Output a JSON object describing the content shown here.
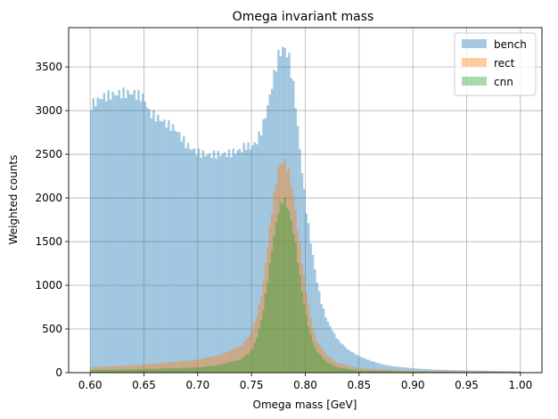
{
  "chart_data": {
    "type": "histogram",
    "title": "Omega invariant mass",
    "xlabel": "Omega mass [GeV]",
    "ylabel": "Weighted counts",
    "xlim": [
      0.58,
      1.02
    ],
    "ylim": [
      0,
      3950
    ],
    "xticks": [
      0.6,
      0.65,
      0.7,
      0.75,
      0.8,
      0.85,
      0.9,
      0.95,
      1.0
    ],
    "xtick_labels": [
      "0.60",
      "0.65",
      "0.70",
      "0.75",
      "0.80",
      "0.85",
      "0.90",
      "0.95",
      "1.00"
    ],
    "yticks": [
      0,
      500,
      1000,
      1500,
      2000,
      2500,
      3000,
      3500
    ],
    "ytick_labels": [
      "0",
      "500",
      "1000",
      "1500",
      "2000",
      "2500",
      "3000",
      "3500"
    ],
    "grid": true,
    "legend_position": "top-right",
    "bins": {
      "start": 0.6,
      "end": 1.0,
      "count": 200
    },
    "series": [
      {
        "name": "bench",
        "color": "#1f77b4",
        "alpha": 0.4,
        "points": [
          [
            0.6,
            3050
          ],
          [
            0.61,
            3150
          ],
          [
            0.62,
            3180
          ],
          [
            0.63,
            3200
          ],
          [
            0.64,
            3200
          ],
          [
            0.65,
            3150
          ],
          [
            0.655,
            2980
          ],
          [
            0.665,
            2900
          ],
          [
            0.68,
            2780
          ],
          [
            0.69,
            2600
          ],
          [
            0.7,
            2520
          ],
          [
            0.71,
            2490
          ],
          [
            0.72,
            2500
          ],
          [
            0.73,
            2510
          ],
          [
            0.74,
            2550
          ],
          [
            0.745,
            2600
          ],
          [
            0.75,
            2580
          ],
          [
            0.755,
            2650
          ],
          [
            0.76,
            2800
          ],
          [
            0.765,
            3050
          ],
          [
            0.77,
            3350
          ],
          [
            0.775,
            3630
          ],
          [
            0.78,
            3730
          ],
          [
            0.785,
            3600
          ],
          [
            0.79,
            3200
          ],
          [
            0.795,
            2550
          ],
          [
            0.8,
            1950
          ],
          [
            0.805,
            1500
          ],
          [
            0.81,
            1100
          ],
          [
            0.815,
            800
          ],
          [
            0.82,
            600
          ],
          [
            0.83,
            380
          ],
          [
            0.84,
            260
          ],
          [
            0.85,
            190
          ],
          [
            0.86,
            140
          ],
          [
            0.87,
            100
          ],
          [
            0.88,
            75
          ],
          [
            0.9,
            50
          ],
          [
            0.92,
            35
          ],
          [
            0.95,
            25
          ],
          [
            1.0,
            15
          ]
        ]
      },
      {
        "name": "rect",
        "color": "#ff7f0e",
        "alpha": 0.4,
        "points": [
          [
            0.6,
            60
          ],
          [
            0.65,
            90
          ],
          [
            0.7,
            150
          ],
          [
            0.72,
            200
          ],
          [
            0.74,
            300
          ],
          [
            0.75,
            450
          ],
          [
            0.755,
            650
          ],
          [
            0.76,
            950
          ],
          [
            0.765,
            1450
          ],
          [
            0.77,
            1950
          ],
          [
            0.775,
            2350
          ],
          [
            0.78,
            2430
          ],
          [
            0.785,
            2300
          ],
          [
            0.79,
            1950
          ],
          [
            0.795,
            1450
          ],
          [
            0.8,
            1000
          ],
          [
            0.805,
            620
          ],
          [
            0.81,
            380
          ],
          [
            0.82,
            200
          ],
          [
            0.83,
            110
          ],
          [
            0.85,
            50
          ],
          [
            0.9,
            20
          ],
          [
            1.0,
            10
          ]
        ]
      },
      {
        "name": "cnn",
        "color": "#2ca02c",
        "alpha": 0.4,
        "points": [
          [
            0.6,
            30
          ],
          [
            0.65,
            40
          ],
          [
            0.7,
            60
          ],
          [
            0.72,
            90
          ],
          [
            0.74,
            150
          ],
          [
            0.75,
            250
          ],
          [
            0.755,
            400
          ],
          [
            0.76,
            650
          ],
          [
            0.765,
            1050
          ],
          [
            0.77,
            1500
          ],
          [
            0.775,
            1850
          ],
          [
            0.78,
            2000
          ],
          [
            0.785,
            1850
          ],
          [
            0.79,
            1550
          ],
          [
            0.795,
            1100
          ],
          [
            0.8,
            700
          ],
          [
            0.805,
            430
          ],
          [
            0.81,
            250
          ],
          [
            0.82,
            120
          ],
          [
            0.83,
            60
          ],
          [
            0.85,
            25
          ],
          [
            0.9,
            10
          ],
          [
            1.0,
            5
          ]
        ]
      }
    ]
  }
}
